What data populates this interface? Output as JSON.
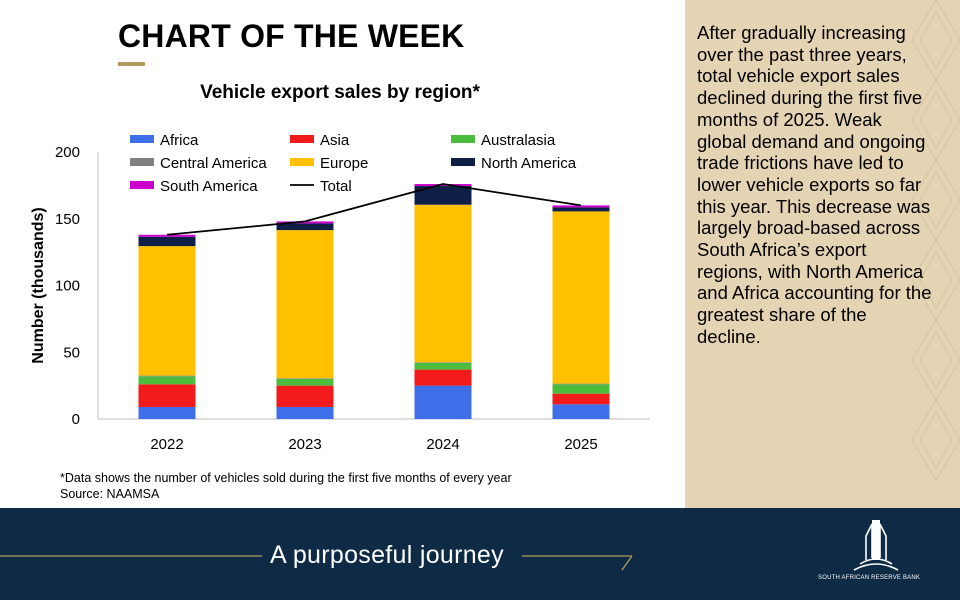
{
  "slide": {
    "heading": "CHART OF THE WEEK",
    "footnote": "*Data shows the number of vehicles sold during the first five months of every year",
    "source": "Source: NAAMSA",
    "commentary": "After gradually increasing over the past three years, total vehicle export sales declined during the first five months of 2025. Weak global demand and ongoing trade frictions have led to lower vehicle exports so far this year. This decrease was largely broad-based across South Africa’s export regions, with North America and Africa accounting for the greatest share of the decline.",
    "slogan": "A purposeful journey",
    "logo_caption": "SOUTH AFRICAN RESERVE BANK",
    "colors": {
      "accent_gold": "#b59a5e",
      "panel": "#e4d4b4",
      "footer": "#0e2a44"
    },
    "logo_icon": "sarb-building-icon"
  },
  "chart_data": {
    "type": "bar",
    "stacked": true,
    "title": "Vehicle export sales by region*",
    "ylabel": "Number (thousands)",
    "xlabel": "",
    "categories": [
      "2022",
      "2023",
      "2024",
      "2025"
    ],
    "ylim": [
      0,
      200
    ],
    "yticks": [
      0,
      50,
      100,
      150,
      200
    ],
    "grid": false,
    "legend": "top",
    "series": [
      {
        "name": "Africa",
        "color": "#3f6fe8",
        "values": [
          9,
          9,
          25,
          11
        ]
      },
      {
        "name": "Asia",
        "color": "#f21a1a",
        "values": [
          17,
          16,
          12,
          8
        ]
      },
      {
        "name": "Australasia",
        "color": "#4cbc3f",
        "values": [
          6,
          5,
          5,
          7
        ]
      },
      {
        "name": "Central America",
        "color": "#808080",
        "values": [
          0.5,
          0.5,
          0.5,
          0.5
        ]
      },
      {
        "name": "Europe",
        "color": "#ffc000",
        "values": [
          97,
          111,
          118,
          129
        ]
      },
      {
        "name": "North America",
        "color": "#0e1f47",
        "values": [
          7,
          5,
          14,
          3
        ]
      },
      {
        "name": "South America",
        "color": "#cc00cc",
        "values": [
          1.5,
          1.5,
          1.5,
          1.5
        ]
      }
    ],
    "total": {
      "name": "Total",
      "color": "#000000",
      "values": [
        138,
        148,
        176,
        160
      ]
    }
  }
}
